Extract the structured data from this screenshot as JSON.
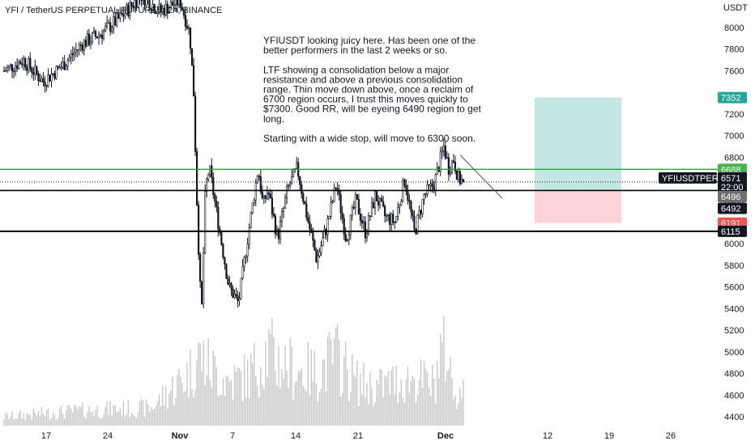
{
  "header": {
    "title": "YFI / TetherUS PERPETUAL FUTURES, 2h, BINANCE",
    "currency": "USDT"
  },
  "annotation": {
    "lines": [
      "YFIUSDT looking juicy here. Has been one of the",
      "better performers in the last 2 weeks or so.",
      "",
      "LTF showing a consolidation below a major",
      "resistance and above a previous consolidation",
      "range. Thin move down above, once a reclaim of",
      "6700 region occurs, I trust this moves quickly to",
      "$7300. Good RR, will be eyeing 6490 region to get",
      "long.",
      "",
      " Starting with a wide stop, will move to 6300 soon."
    ]
  },
  "price_tags": {
    "target": {
      "value": "7352",
      "color": "#26a69a"
    },
    "resistance": {
      "value": "6688",
      "color": "#4caf50"
    },
    "symbol": {
      "label": "YFIUSDTPERP",
      "color": "#131722"
    },
    "last": {
      "value": "6571",
      "countdown": "22:00",
      "color": "#131722"
    },
    "entry": {
      "value": "6496",
      "color": "#6f6f6f"
    },
    "support_upper": {
      "value": "6492",
      "color": "#131722"
    },
    "stop": {
      "value": "6191",
      "color": "#ef5350"
    },
    "support_lower": {
      "value": "6115",
      "color": "#131722"
    }
  },
  "colors": {
    "candle": "#131722",
    "volume": "#c8c8c8",
    "resistance_line": "#2e9e3a",
    "support_line": "#000000",
    "profit_zone": "#b2dfdb",
    "loss_zone": "#ffcdd2"
  },
  "chart_data": {
    "type": "candlestick",
    "title": "YFI / TetherUS PERPETUAL FUTURES, 2h, BINANCE",
    "xlabel": "",
    "ylabel": "USDT",
    "ylim": [
      4300,
      8250
    ],
    "y_ticks": [
      "8000",
      "7800",
      "7600",
      "7400",
      "7200",
      "7000",
      "6800",
      "6600",
      "6400",
      "6200",
      "6000",
      "5800",
      "5600",
      "5400",
      "5200",
      "5000",
      "4800",
      "4600",
      "4400"
    ],
    "x_ticks": [
      "17",
      "24",
      "Nov",
      "7",
      "14",
      "21",
      "Dec",
      "12",
      "19",
      "26"
    ],
    "price_path": {
      "x_day": [
        0,
        2,
        4,
        6,
        8,
        10,
        12,
        14,
        16,
        18,
        19,
        19.4,
        19.8,
        20.2,
        20.6,
        21,
        22,
        23,
        24,
        25,
        26,
        26.5,
        27,
        28,
        29,
        30,
        31,
        32,
        33,
        34,
        35,
        36,
        37,
        38,
        39,
        40,
        41,
        42,
        43,
        44,
        45,
        45.5,
        46,
        46.5,
        47
      ],
      "close": [
        7600,
        7700,
        7500,
        7650,
        7850,
        7950,
        8100,
        8300,
        8150,
        8250,
        7950,
        7400,
        6200,
        5300,
        6500,
        6700,
        6150,
        5600,
        5450,
        6100,
        6700,
        6350,
        6500,
        6050,
        6500,
        6700,
        6250,
        5850,
        6150,
        6550,
        6050,
        6400,
        6100,
        6450,
        6250,
        6200,
        6600,
        6100,
        6450,
        6550,
        6900,
        6700,
        6780,
        6600,
        6571
      ]
    },
    "volume": {
      "x_day": [
        0,
        5,
        10,
        15,
        19,
        20,
        21,
        23,
        25,
        27,
        28,
        30,
        32,
        34,
        36,
        38,
        40,
        42,
        44,
        45,
        46,
        47
      ],
      "values": [
        30,
        45,
        55,
        60,
        180,
        240,
        200,
        150,
        170,
        260,
        220,
        190,
        180,
        240,
        150,
        130,
        150,
        160,
        140,
        300,
        120,
        110
      ]
    },
    "horizontal_levels": [
      {
        "price": 6688,
        "label": "resistance"
      },
      {
        "price": 6492,
        "label": "support_upper"
      },
      {
        "price": 6115,
        "label": "support_lower"
      }
    ],
    "long_position": {
      "entry": 6496,
      "target": 7352,
      "stop": 6191
    },
    "last_price": 6571,
    "grid": false
  }
}
